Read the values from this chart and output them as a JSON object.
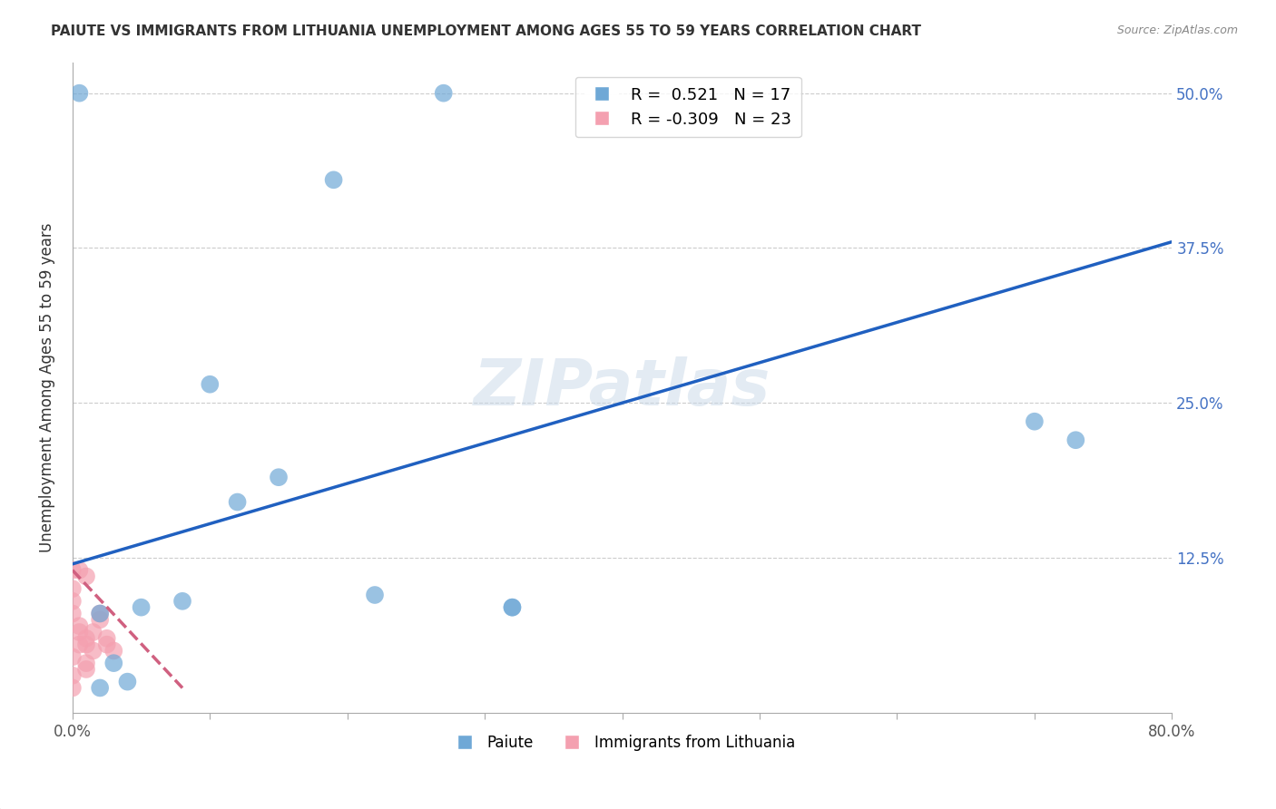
{
  "title": "PAIUTE VS IMMIGRANTS FROM LITHUANIA UNEMPLOYMENT AMONG AGES 55 TO 59 YEARS CORRELATION CHART",
  "source": "Source: ZipAtlas.com",
  "xlabel": "",
  "ylabel": "Unemployment Among Ages 55 to 59 years",
  "xlim": [
    0,
    0.8
  ],
  "ylim": [
    0,
    0.525
  ],
  "x_ticks": [
    0.0,
    0.1,
    0.2,
    0.3,
    0.4,
    0.5,
    0.6,
    0.7,
    0.8
  ],
  "x_tick_labels": [
    "0.0%",
    "",
    "",
    "",
    "",
    "",
    "",
    "",
    "80.0%"
  ],
  "y_tick_labels": [
    "",
    "12.5%",
    "25.0%",
    "37.5%",
    "50.0%"
  ],
  "y_ticks": [
    0.0,
    0.125,
    0.25,
    0.375,
    0.5
  ],
  "watermark": "ZIPatlas",
  "legend_blue_r": "0.521",
  "legend_blue_n": "17",
  "legend_pink_r": "-0.309",
  "legend_pink_n": "23",
  "blue_scatter_x": [
    0.02,
    0.05,
    0.08,
    0.1,
    0.12,
    0.02,
    0.03,
    0.04,
    0.15,
    0.19,
    0.22,
    0.32,
    0.32,
    0.7,
    0.73,
    0.27,
    0.005
  ],
  "blue_scatter_y": [
    0.08,
    0.085,
    0.09,
    0.265,
    0.17,
    0.02,
    0.04,
    0.025,
    0.19,
    0.43,
    0.095,
    0.085,
    0.085,
    0.235,
    0.22,
    0.5,
    0.5
  ],
  "pink_scatter_x": [
    0.0,
    0.0,
    0.0,
    0.0,
    0.0,
    0.005,
    0.005,
    0.005,
    0.01,
    0.01,
    0.01,
    0.01,
    0.015,
    0.015,
    0.02,
    0.02,
    0.025,
    0.025,
    0.03,
    0.0,
    0.0,
    0.005,
    0.01
  ],
  "pink_scatter_y": [
    0.1,
    0.115,
    0.045,
    0.03,
    0.02,
    0.07,
    0.065,
    0.055,
    0.06,
    0.055,
    0.04,
    0.035,
    0.065,
    0.05,
    0.08,
    0.075,
    0.06,
    0.055,
    0.05,
    0.08,
    0.09,
    0.115,
    0.11
  ],
  "blue_line_x": [
    0.0,
    0.8
  ],
  "blue_line_y": [
    0.12,
    0.38
  ],
  "pink_line_x": [
    0.0,
    0.08
  ],
  "pink_line_y": [
    0.115,
    0.02
  ],
  "blue_color": "#6fa8d6",
  "pink_color": "#f4a0b0",
  "blue_line_color": "#2060c0",
  "pink_line_color": "#d06080",
  "background_color": "#ffffff",
  "grid_color": "#cccccc"
}
